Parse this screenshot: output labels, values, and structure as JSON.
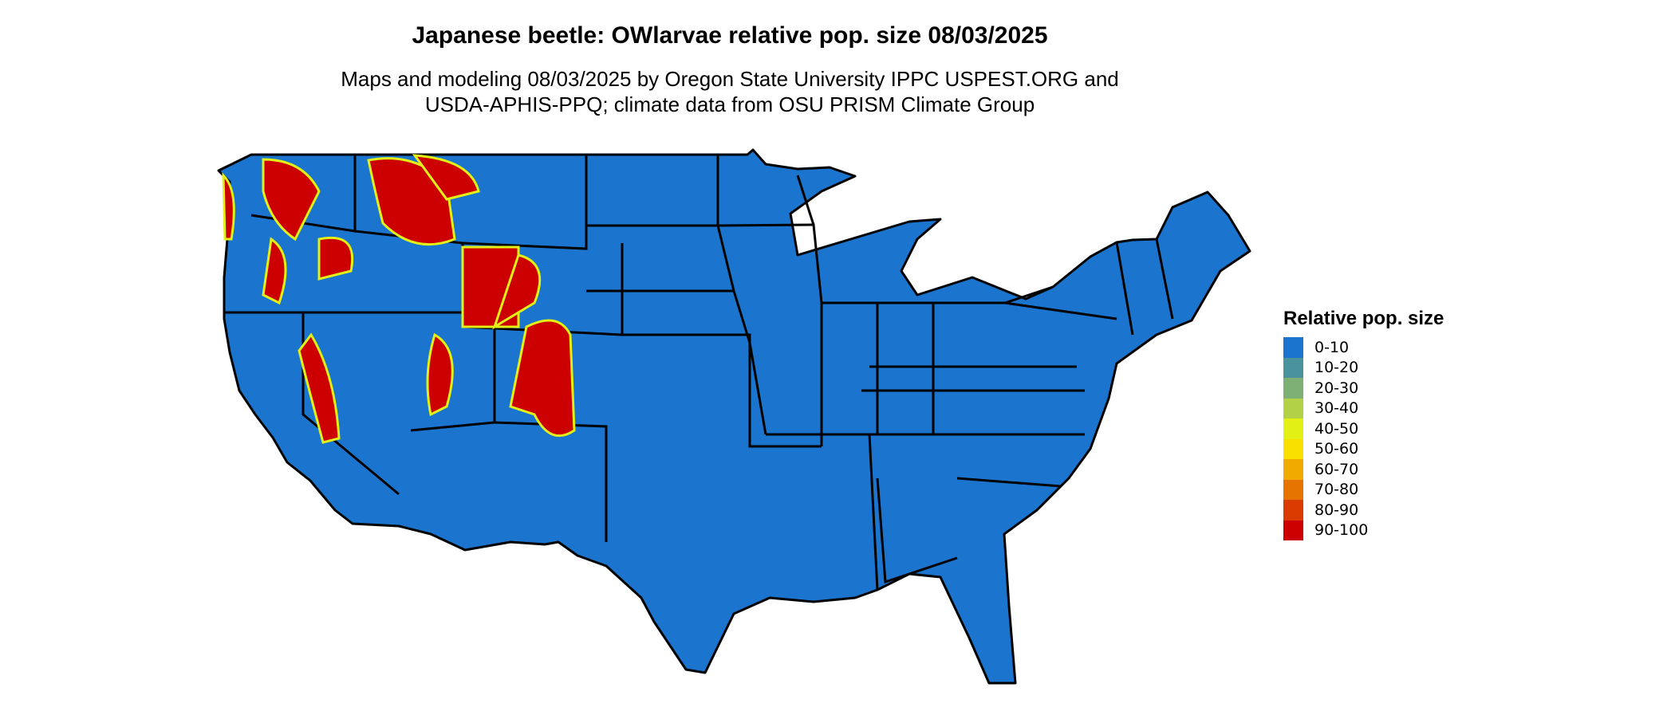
{
  "title": "Japanese beetle: OWlarvae relative pop. size 08/03/2025",
  "subtitle_line1": "Maps and modeling 08/03/2025 by Oregon State University IPPC USPEST.ORG and",
  "subtitle_line2": "USDA-APHIS-PPQ; climate data from OSU PRISM Climate Group",
  "legend": {
    "title": "Relative pop. size",
    "items": [
      {
        "label": "0-10",
        "color": "#1B75CE"
      },
      {
        "label": "10-20",
        "color": "#4A939D"
      },
      {
        "label": "20-30",
        "color": "#7EB075"
      },
      {
        "label": "30-40",
        "color": "#B3D146"
      },
      {
        "label": "40-50",
        "color": "#E3F016"
      },
      {
        "label": "50-60",
        "color": "#F9E000"
      },
      {
        "label": "60-70",
        "color": "#F0AA00"
      },
      {
        "label": "70-80",
        "color": "#E57400"
      },
      {
        "label": "80-90",
        "color": "#DC3B00"
      },
      {
        "label": "90-100",
        "color": "#CC0000"
      }
    ]
  }
}
